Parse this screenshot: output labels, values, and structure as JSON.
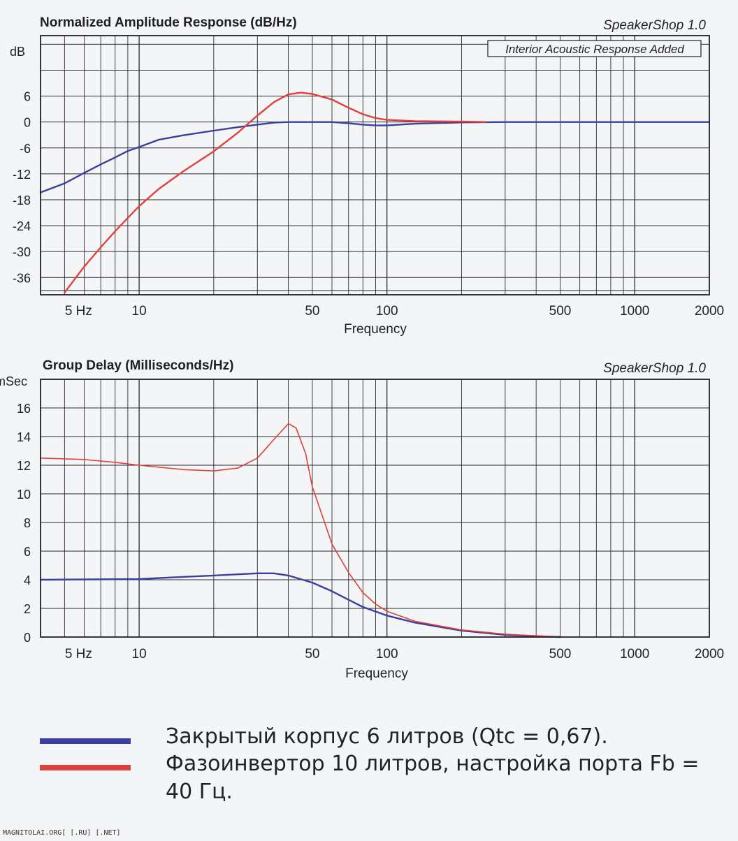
{
  "chart_data": [
    {
      "type": "line",
      "title": "Normalized Amplitude Response (dB/Hz)",
      "watermark": "SpeakerShop 1.0",
      "annotation": "Interior Acoustic Response Added",
      "ylabel": "dB",
      "xlabel": "Frequency",
      "xscale": "log",
      "xlim": [
        4,
        2000
      ],
      "ylim": [
        -40,
        20
      ],
      "yticks": [
        6,
        0,
        -6,
        -12,
        -18,
        -24,
        -30,
        -36
      ],
      "xtick_labels": [
        {
          "v": 5,
          "label": "5  Hz"
        },
        {
          "v": 10,
          "label": "10"
        },
        {
          "v": 50,
          "label": "50"
        },
        {
          "v": 100,
          "label": "100"
        },
        {
          "v": 500,
          "label": "500"
        },
        {
          "v": 1000,
          "label": "1000"
        },
        {
          "v": 2000,
          "label": "2000"
        }
      ],
      "grid": true,
      "series": [
        {
          "color": "#3b3fa0",
          "points": [
            [
              4,
              -16.3
            ],
            [
              5,
              -14.2
            ],
            [
              6,
              -11.8
            ],
            [
              7,
              -9.8
            ],
            [
              8,
              -8.2
            ],
            [
              9,
              -6.7
            ],
            [
              10,
              -5.8
            ],
            [
              12,
              -4.1
            ],
            [
              15,
              -3.1
            ],
            [
              20,
              -2.0
            ],
            [
              25,
              -1.2
            ],
            [
              30,
              -0.6
            ],
            [
              35,
              -0.15
            ],
            [
              40,
              0
            ],
            [
              60,
              0
            ],
            [
              70,
              -0.3
            ],
            [
              80,
              -0.6
            ],
            [
              90,
              -0.8
            ],
            [
              100,
              -0.8
            ],
            [
              130,
              -0.4
            ],
            [
              200,
              -0.1
            ],
            [
              300,
              0
            ],
            [
              2000,
              0
            ]
          ]
        },
        {
          "color": "#e0413a",
          "points": [
            [
              5,
              -39.5
            ],
            [
              6,
              -33.5
            ],
            [
              7,
              -29
            ],
            [
              8,
              -25.3
            ],
            [
              9,
              -22.2
            ],
            [
              10,
              -19.5
            ],
            [
              12,
              -15.5
            ],
            [
              15,
              -11.5
            ],
            [
              20,
              -6.8
            ],
            [
              25,
              -2.5
            ],
            [
              30,
              1.5
            ],
            [
              35,
              4.6
            ],
            [
              40,
              6.4
            ],
            [
              45,
              6.8
            ],
            [
              50,
              6.5
            ],
            [
              60,
              5.2
            ],
            [
              70,
              3.3
            ],
            [
              80,
              1.8
            ],
            [
              90,
              0.9
            ],
            [
              100,
              0.5
            ],
            [
              130,
              0.2
            ],
            [
              200,
              0.1
            ],
            [
              250,
              0
            ]
          ]
        }
      ]
    },
    {
      "type": "line",
      "title": "Group Delay (Milliseconds/Hz)",
      "watermark": "SpeakerShop 1.0",
      "ylabel": "mSec",
      "xlabel": "Frequency",
      "xscale": "log",
      "xlim": [
        4,
        2000
      ],
      "ylim": [
        0,
        18
      ],
      "yticks": [
        0,
        2,
        4,
        6,
        8,
        10,
        12,
        14,
        16
      ],
      "xtick_labels": [
        {
          "v": 5,
          "label": "5  Hz"
        },
        {
          "v": 10,
          "label": "10"
        },
        {
          "v": 50,
          "label": "50"
        },
        {
          "v": 100,
          "label": "100"
        },
        {
          "v": 500,
          "label": "500"
        },
        {
          "v": 1000,
          "label": "1000"
        },
        {
          "v": 2000,
          "label": "2000"
        }
      ],
      "grid": true,
      "series": [
        {
          "color": "#3b3fa0",
          "points": [
            [
              4,
              4.0
            ],
            [
              10,
              4.05
            ],
            [
              15,
              4.2
            ],
            [
              20,
              4.3
            ],
            [
              30,
              4.45
            ],
            [
              35,
              4.45
            ],
            [
              40,
              4.3
            ],
            [
              50,
              3.8
            ],
            [
              60,
              3.2
            ],
            [
              70,
              2.6
            ],
            [
              80,
              2.1
            ],
            [
              100,
              1.5
            ],
            [
              130,
              1.0
            ],
            [
              200,
              0.45
            ],
            [
              300,
              0.15
            ],
            [
              500,
              0
            ]
          ]
        },
        {
          "color": "#e0413a",
          "points": [
            [
              4,
              12.5
            ],
            [
              6,
              12.4
            ],
            [
              8,
              12.2
            ],
            [
              10,
              12.0
            ],
            [
              15,
              11.7
            ],
            [
              20,
              11.6
            ],
            [
              25,
              11.8
            ],
            [
              30,
              12.5
            ],
            [
              35,
              13.8
            ],
            [
              40,
              14.9
            ],
            [
              43,
              14.6
            ],
            [
              47,
              12.8
            ],
            [
              50,
              10.5
            ],
            [
              60,
              6.5
            ],
            [
              70,
              4.5
            ],
            [
              80,
              3.1
            ],
            [
              90,
              2.3
            ],
            [
              100,
              1.8
            ],
            [
              130,
              1.1
            ],
            [
              200,
              0.5
            ],
            [
              300,
              0.2
            ],
            [
              500,
              0
            ]
          ]
        }
      ]
    }
  ],
  "legend": [
    {
      "label": "Закрытый корпус 6 литров (Qtc = 0,67).",
      "color": "#3b3fa0"
    },
    {
      "label": "Фазоинвертор 10 литров, настройка порта Fb = 40 Гц.",
      "color": "#e0413a"
    }
  ],
  "footer": "MAGNITOLAI.ORG[ [.RU] [.NET]"
}
